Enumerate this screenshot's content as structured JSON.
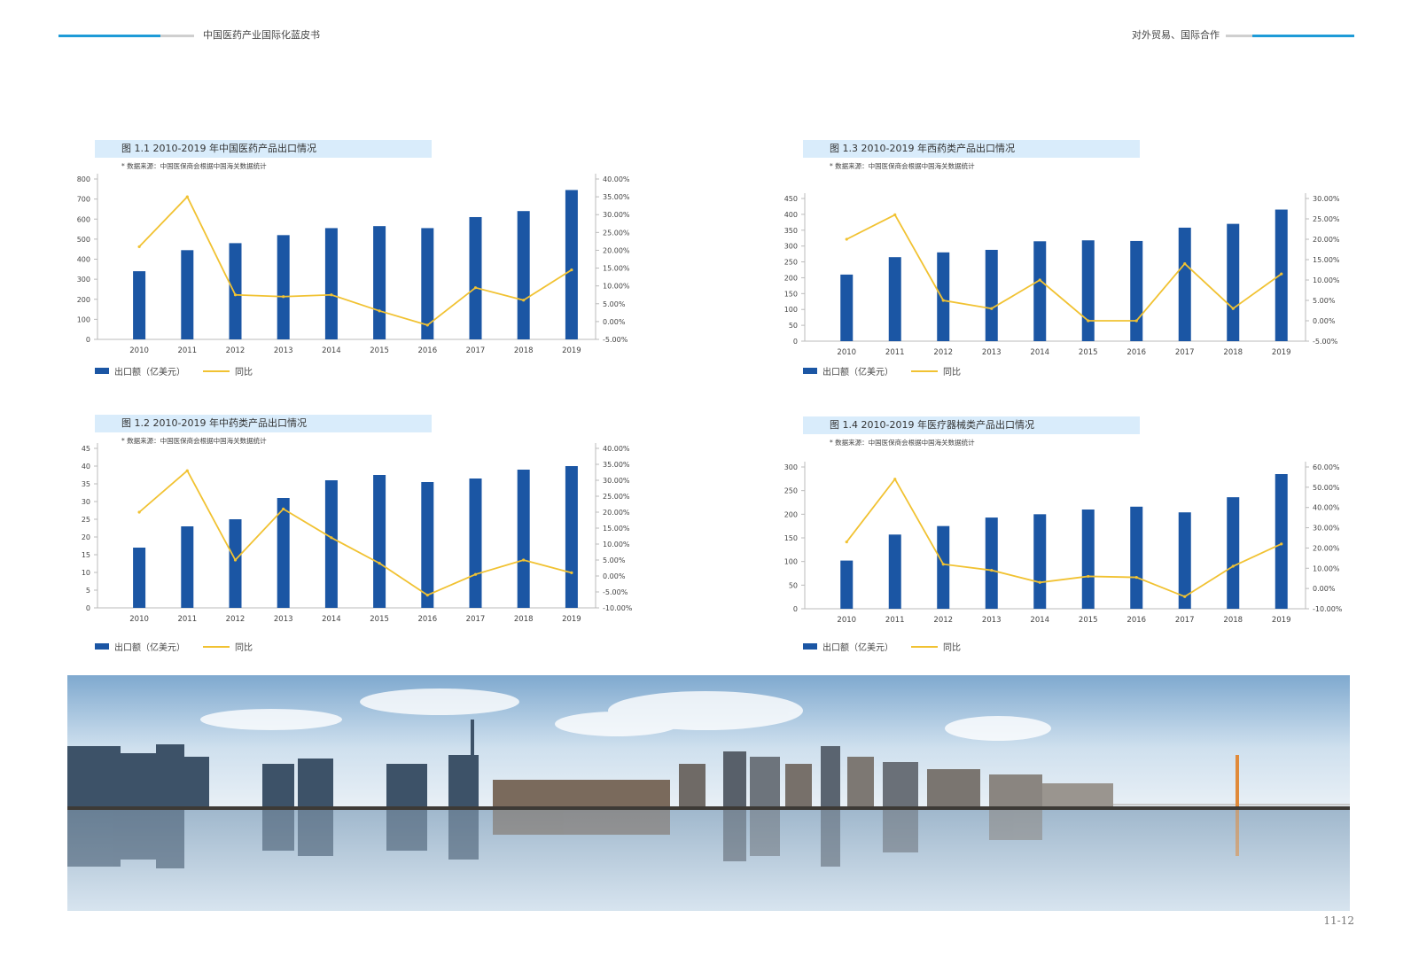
{
  "header": {
    "left_title": "中国医药产业国际化蓝皮书",
    "right_title": "对外贸易、国际合作",
    "accent_color": "#1e9bd7"
  },
  "page_number": "11-12",
  "legend": {
    "bar_label": "出口额（亿美元）",
    "line_label": "同比"
  },
  "chart_data": [
    {
      "type": "bar",
      "title": "图 1.1 2010-2019 年中国医药产品出口情况",
      "source": "* 数据来源：中国医保商会根据中国海关数据统计",
      "categories": [
        "2010",
        "2011",
        "2012",
        "2013",
        "2014",
        "2015",
        "2016",
        "2017",
        "2018",
        "2019"
      ],
      "series": [
        {
          "name": "出口额（亿美元）",
          "type": "bar",
          "values": [
            340,
            445,
            480,
            520,
            555,
            565,
            555,
            610,
            640,
            745
          ]
        },
        {
          "name": "同比",
          "type": "line",
          "axis": "right",
          "values": [
            21,
            35,
            7.5,
            7,
            7.5,
            3,
            -1,
            9.5,
            6,
            14.5
          ]
        }
      ],
      "ylim": [
        0,
        800
      ],
      "yticks": [
        0,
        100,
        200,
        300,
        400,
        500,
        600,
        700,
        800
      ],
      "y2lim": [
        -5,
        40
      ],
      "y2ticks": [
        -5,
        0,
        5,
        10,
        15,
        20,
        25,
        30,
        35,
        40
      ]
    },
    {
      "type": "bar",
      "title": "图 1.3 2010-2019 年西药类产品出口情况",
      "source": "* 数据来源：中国医保商会根据中国海关数据统计",
      "categories": [
        "2010",
        "2011",
        "2012",
        "2013",
        "2014",
        "2015",
        "2016",
        "2017",
        "2018",
        "2019"
      ],
      "series": [
        {
          "name": "出口额（亿美元）",
          "type": "bar",
          "values": [
            210,
            265,
            280,
            288,
            315,
            318,
            316,
            358,
            370,
            415
          ]
        },
        {
          "name": "同比",
          "type": "line",
          "axis": "right",
          "values": [
            20,
            26,
            5,
            3,
            10,
            0,
            0,
            14,
            3,
            11.5
          ]
        }
      ],
      "ylim": [
        0,
        450
      ],
      "yticks": [
        0,
        50,
        100,
        150,
        200,
        250,
        300,
        350,
        400,
        450
      ],
      "y2lim": [
        -5,
        30
      ],
      "y2ticks": [
        -5,
        0,
        5,
        10,
        15,
        20,
        25,
        30
      ]
    },
    {
      "type": "bar",
      "title": "图 1.2 2010-2019 年中药类产品出口情况",
      "source": "* 数据来源：中国医保商会根据中国海关数据统计",
      "categories": [
        "2010",
        "2011",
        "2012",
        "2013",
        "2014",
        "2015",
        "2016",
        "2017",
        "2018",
        "2019"
      ],
      "series": [
        {
          "name": "出口额（亿美元）",
          "type": "bar",
          "values": [
            17,
            23,
            25,
            31,
            36,
            37.5,
            35.5,
            36.5,
            39,
            40
          ]
        },
        {
          "name": "同比",
          "type": "line",
          "axis": "right",
          "values": [
            20,
            33,
            5,
            21,
            12,
            4,
            -6,
            0.5,
            5,
            1
          ]
        }
      ],
      "ylim": [
        0,
        45
      ],
      "yticks": [
        0,
        5,
        10,
        15,
        20,
        25,
        30,
        35,
        40,
        45
      ],
      "y2lim": [
        -10,
        40
      ],
      "y2ticks": [
        -10,
        -5,
        0,
        5,
        10,
        15,
        20,
        25,
        30,
        35,
        40
      ]
    },
    {
      "type": "bar",
      "title": "图 1.4 2010-2019 年医疗器械类产品出口情况",
      "source": "* 数据来源：中国医保商会根据中国海关数据统计",
      "categories": [
        "2010",
        "2011",
        "2012",
        "2013",
        "2014",
        "2015",
        "2016",
        "2017",
        "2018",
        "2019"
      ],
      "series": [
        {
          "name": "出口额（亿美元）",
          "type": "bar",
          "values": [
            102,
            157,
            175,
            193,
            200,
            210,
            216,
            204,
            236,
            285
          ]
        },
        {
          "name": "同比",
          "type": "line",
          "axis": "right",
          "values": [
            23,
            54,
            12,
            9,
            3,
            6,
            5.5,
            -4,
            11,
            22
          ]
        }
      ],
      "ylim": [
        0,
        300
      ],
      "yticks": [
        0,
        50,
        100,
        150,
        200,
        250,
        300
      ],
      "y2lim": [
        -10,
        60
      ],
      "y2ticks": [
        -10,
        0,
        10,
        20,
        30,
        40,
        50,
        60
      ]
    }
  ]
}
